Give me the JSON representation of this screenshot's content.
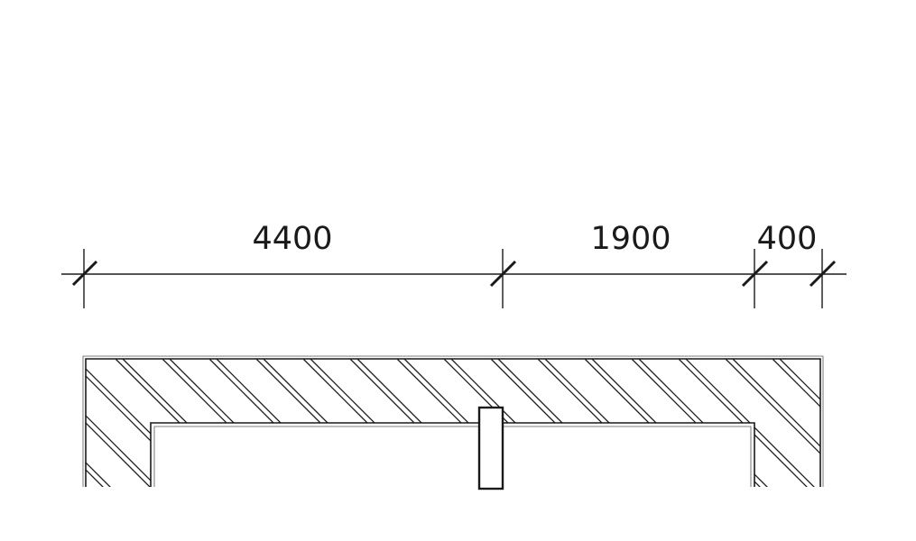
{
  "dimensions": [
    {
      "label": "4400"
    },
    {
      "label": "1900"
    },
    {
      "label": "400"
    }
  ],
  "colors": {
    "line": "#1a1a1a",
    "background": "#ffffff"
  }
}
